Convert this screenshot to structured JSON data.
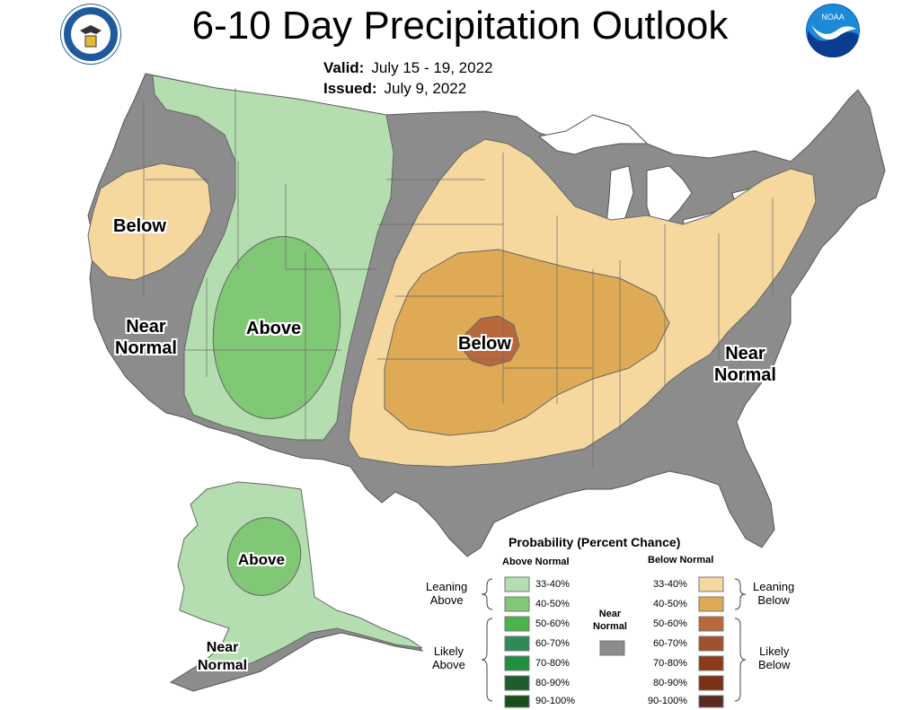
{
  "title": "6-10 Day Precipitation Outlook",
  "valid": {
    "label": "Valid:",
    "value": "July 15 - 19, 2022"
  },
  "issued": {
    "label": "Issued:",
    "value": "July 9, 2022"
  },
  "colors": {
    "near_normal": "#8c8c8c",
    "above_33_40": "#b4deb0",
    "above_40_50": "#80c875",
    "above_50_60": "#4bb34b",
    "above_60_70": "#2e8b57",
    "above_70_80": "#209040",
    "above_80_90": "#1f5c2e",
    "above_90_100": "#194d19",
    "below_33_40": "#f6d79e",
    "below_40_50": "#deaa55",
    "below_50_60": "#b9683d",
    "below_60_70": "#a0522d",
    "below_70_80": "#8b3a1a",
    "below_80_90": "#7a3216",
    "below_90_100": "#5a2a1e",
    "water": "#ffffff",
    "outline": "#5a5a5a"
  },
  "map_labels": {
    "west_below": "Below",
    "west_near": "Near\nNormal",
    "rockies_above": "Above",
    "central_below": "Below",
    "east_near": "Near\nNormal",
    "alaska_above": "Above",
    "alaska_near": "Near\nNormal"
  },
  "legend": {
    "title": "Probability (Percent Chance)",
    "above_header": "Above Normal",
    "below_header": "Below Normal",
    "near_header": "Near\nNormal",
    "leaning_above": "Leaning\nAbove",
    "likely_above": "Likely\nAbove",
    "leaning_below": "Leaning\nBelow",
    "likely_below": "Likely\nBelow",
    "ranges": [
      "33-40%",
      "40-50%",
      "50-60%",
      "60-70%",
      "70-80%",
      "80-90%",
      "90-100%"
    ]
  },
  "logos": [
    "noaa-logo",
    "doc-seal"
  ],
  "logo_text": {
    "noaa": "NOAA"
  }
}
